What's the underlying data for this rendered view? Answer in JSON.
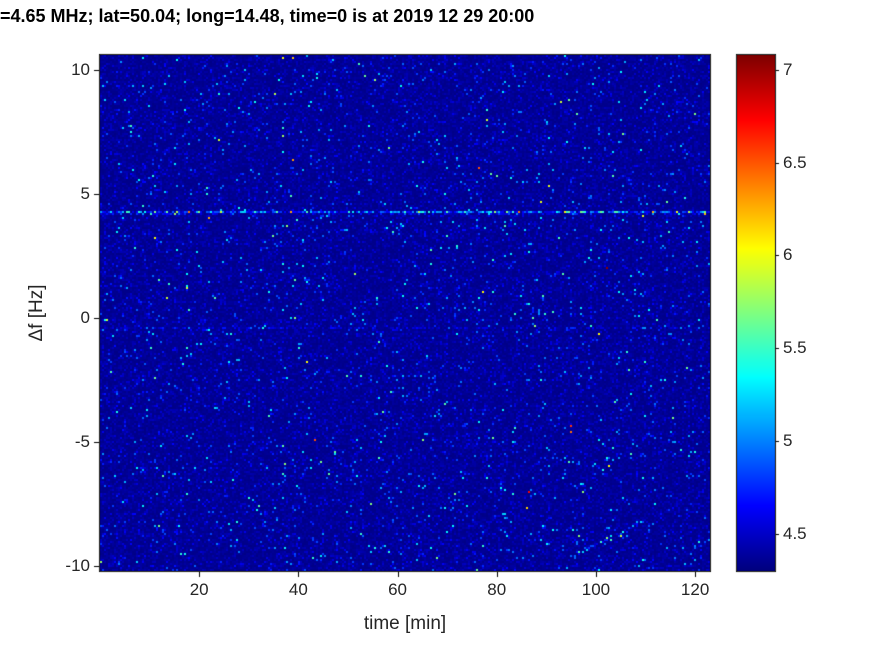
{
  "chart_data": {
    "type": "heatmap",
    "title": "=4.65 MHz;  lat=50.04; long=14.48, time=0 is at 2019 12 29 20:00",
    "xlabel": "time [min]",
    "ylabel": "Δf [Hz]",
    "xlim": [
      0,
      123
    ],
    "ylim": [
      -10.2,
      10.6
    ],
    "xticks": [
      20,
      40,
      60,
      80,
      100,
      120
    ],
    "yticks": [
      10,
      5,
      0,
      -5,
      -10
    ],
    "grid": false,
    "legend": "none",
    "colorbar": {
      "colormap": "jet",
      "range": [
        4.3,
        7.08
      ],
      "ticks": [
        4.5,
        5,
        5.5,
        6,
        6.5,
        7
      ],
      "position": "right"
    },
    "noise": {
      "base": 4.32,
      "speckle_fraction": 0.08,
      "cap": 7.05
    },
    "features": [
      {
        "kind": "hline",
        "f": 4.3,
        "strength": "strong",
        "note": "bright cyan interference line"
      },
      {
        "kind": "hline",
        "f": -0.4,
        "strength": "faint",
        "note": "weak horizontal line"
      },
      {
        "kind": "vline",
        "t": 57,
        "f_range": [
          1.5,
          10.6
        ],
        "strength": "faint"
      },
      {
        "kind": "vline",
        "t": 74.5,
        "f_range": [
          2.0,
          10.6
        ],
        "strength": "faint"
      },
      {
        "kind": "streak",
        "from": [
          94,
          -9.7
        ],
        "to": [
          110,
          -8.1
        ],
        "strength": "medium",
        "note": "diagonal doppler trace lower right"
      }
    ],
    "seed": 20191229,
    "colors": {
      "figure_background": "#ffffff",
      "plot_base": "#000087",
      "axis": "#000000",
      "tick_text": "#262626",
      "title_text": "#000000"
    }
  }
}
